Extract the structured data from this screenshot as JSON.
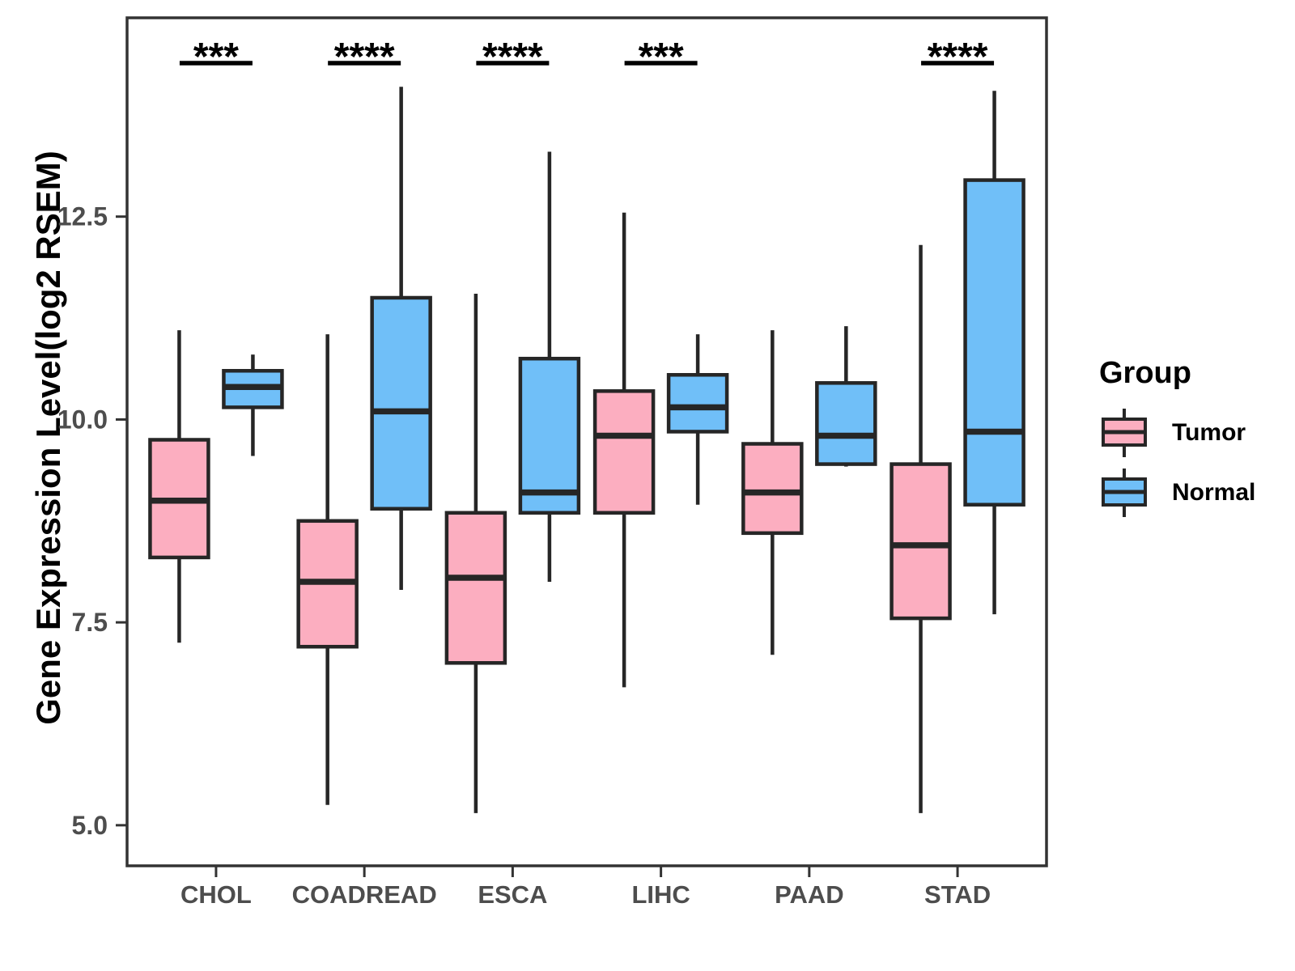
{
  "figure": {
    "background": "#ffffff",
    "panel_border_color": "#333333",
    "box_stroke_color": "#262626",
    "tick_label_color": "#4d4d4d",
    "text_color": "#000000"
  },
  "y_axis": {
    "title": "Gene Expression Level(log2 RSEM)",
    "tick_labels": [
      "5.0",
      "7.5",
      "10.0",
      "12.5"
    ]
  },
  "legend": {
    "title": "Group",
    "items": [
      {
        "label": "Tumor",
        "color": "#FCAEC0"
      },
      {
        "label": "Normal",
        "color": "#70BFF8"
      }
    ]
  },
  "chart_data": {
    "type": "boxplot",
    "title": "",
    "xlabel": "",
    "ylabel": "Gene Expression Level(log2 RSEM)",
    "categories": [
      "CHOL",
      "COADREAD",
      "ESCA",
      "LIHC",
      "PAAD",
      "STAD"
    ],
    "ylim": [
      4.5,
      14.95
    ],
    "yticks": [
      5.0,
      7.5,
      10.0,
      12.5
    ],
    "grid": false,
    "legend_position": "right",
    "series": [
      {
        "name": "Tumor",
        "color": "#FCAEC0",
        "boxes": [
          {
            "category": "CHOL",
            "low": 7.25,
            "q1": 8.3,
            "median": 9.0,
            "q3": 9.75,
            "high": 11.1
          },
          {
            "category": "COADREAD",
            "low": 5.25,
            "q1": 7.2,
            "median": 8.0,
            "q3": 8.75,
            "high": 11.05
          },
          {
            "category": "ESCA",
            "low": 5.15,
            "q1": 7.0,
            "median": 8.05,
            "q3": 8.85,
            "high": 11.55
          },
          {
            "category": "LIHC",
            "low": 6.7,
            "q1": 8.85,
            "median": 9.8,
            "q3": 10.35,
            "high": 12.55
          },
          {
            "category": "PAAD",
            "low": 7.1,
            "q1": 8.6,
            "median": 9.1,
            "q3": 9.7,
            "high": 11.1
          },
          {
            "category": "STAD",
            "low": 5.15,
            "q1": 7.55,
            "median": 8.45,
            "q3": 9.45,
            "high": 12.15
          }
        ]
      },
      {
        "name": "Normal",
        "color": "#70BFF8",
        "boxes": [
          {
            "category": "CHOL",
            "low": 9.55,
            "q1": 10.15,
            "median": 10.4,
            "q3": 10.6,
            "high": 10.8
          },
          {
            "category": "COADREAD",
            "low": 7.9,
            "q1": 8.9,
            "median": 10.1,
            "q3": 11.5,
            "high": 14.1
          },
          {
            "category": "ESCA",
            "low": 8.0,
            "q1": 8.85,
            "median": 9.1,
            "q3": 10.75,
            "high": 13.3
          },
          {
            "category": "LIHC",
            "low": 8.95,
            "q1": 9.85,
            "median": 10.15,
            "q3": 10.55,
            "high": 11.05
          },
          {
            "category": "PAAD",
            "low": 9.42,
            "q1": 9.45,
            "median": 9.8,
            "q3": 10.45,
            "high": 11.15
          },
          {
            "category": "STAD",
            "low": 7.6,
            "q1": 8.95,
            "median": 9.85,
            "q3": 12.95,
            "high": 14.05
          }
        ]
      }
    ],
    "significance": [
      {
        "category": "CHOL",
        "label": "***"
      },
      {
        "category": "COADREAD",
        "label": "****"
      },
      {
        "category": "ESCA",
        "label": "****"
      },
      {
        "category": "LIHC",
        "label": "***"
      },
      {
        "category": "STAD",
        "label": "****"
      }
    ]
  }
}
